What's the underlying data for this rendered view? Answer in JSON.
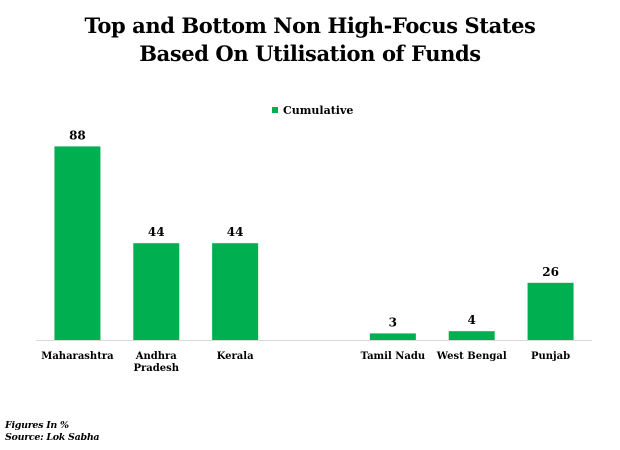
{
  "chart_data": {
    "type": "bar",
    "title_lines": [
      "Top and Bottom  Non High-Focus States",
      "Based On Utilisation of Funds"
    ],
    "categories": [
      [
        "Maharashtra"
      ],
      [
        "Andhra",
        "Pradesh"
      ],
      [
        "Kerala"
      ],
      [
        ""
      ],
      [
        "Tamil Nadu"
      ],
      [
        "West Bengal"
      ],
      [
        "Punjab"
      ]
    ],
    "series": [
      {
        "name": "Cumulative",
        "values": [
          88,
          44,
          44,
          null,
          3,
          4,
          26
        ],
        "color": "#00b050"
      }
    ],
    "ylim": [
      0,
      100
    ],
    "grid": false,
    "legend": "top-center"
  },
  "footer": {
    "note": "Figures In %",
    "source": "Source: Lok Sabha"
  }
}
